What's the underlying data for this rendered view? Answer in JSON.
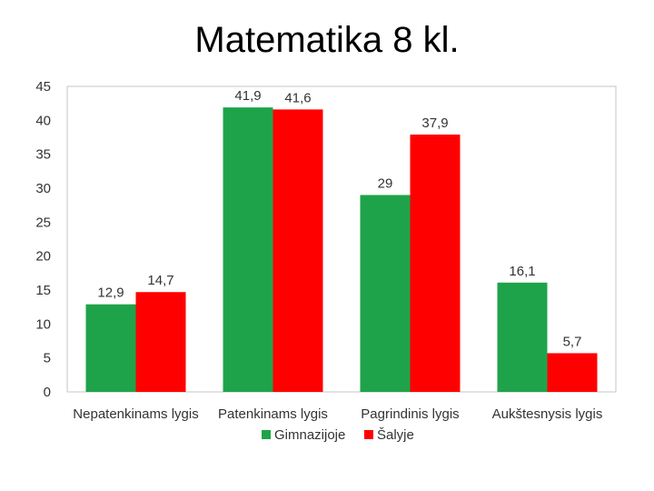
{
  "slide": {
    "title": "Matematika 8 kl."
  },
  "chart_data": {
    "type": "bar",
    "categories": [
      "Nepatenkinams lygis",
      "Patenkinams lygis",
      "Pagrindinis lygis",
      "Aukštesnysis lygis"
    ],
    "series": [
      {
        "name": "Gimnazijoje",
        "color": "#1fa34a",
        "values": [
          12.9,
          41.9,
          29,
          16.1
        ],
        "labels": [
          "12,9",
          "41,9",
          "29",
          "16,1"
        ]
      },
      {
        "name": "Šalyje",
        "color": "#ff0000",
        "values": [
          14.7,
          41.6,
          37.9,
          5.7
        ],
        "labels": [
          "14,7",
          "41,6",
          "37,9",
          "5,7"
        ]
      }
    ],
    "ylim": [
      0,
      45
    ],
    "yticks": [
      0,
      5,
      10,
      15,
      20,
      25,
      30,
      35,
      40,
      45
    ],
    "grid": false,
    "legend": "bottom",
    "title": "",
    "xlabel": "",
    "ylabel": ""
  }
}
